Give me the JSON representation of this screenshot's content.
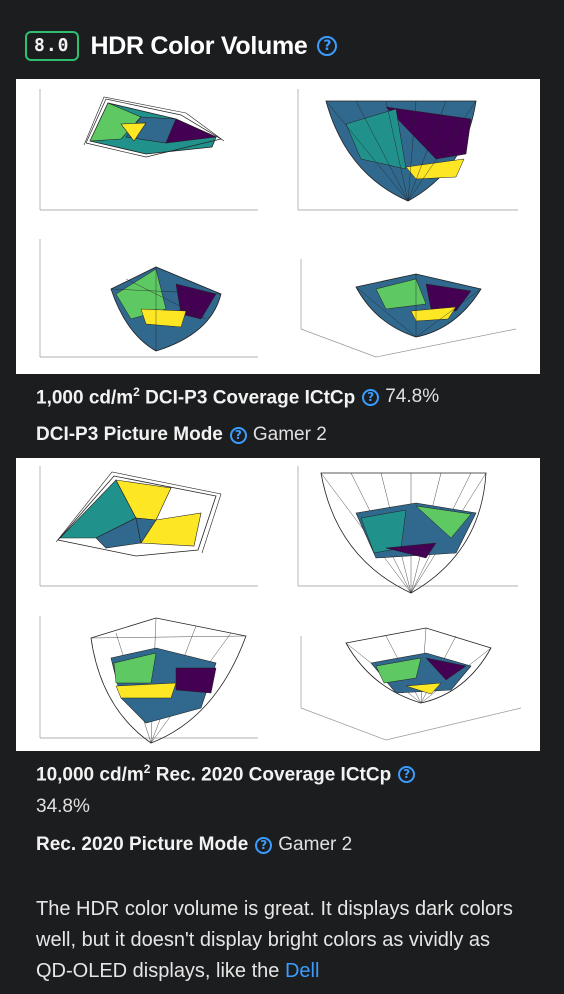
{
  "header": {
    "score": "8.0",
    "title": "HDR Color Volume",
    "help_icon": "question-circle-icon"
  },
  "measurements": [
    {
      "label_prefix": "1,000 cd/m",
      "label_sup": "2",
      "label_suffix": " DCI-P3 Coverage ICtCp",
      "value": "74.8%"
    },
    {
      "label": "DCI-P3 Picture Mode",
      "value": "Gamer 2"
    },
    {
      "label_prefix": "10,000 cd/m",
      "label_sup": "2",
      "label_suffix": " Rec. 2020 Coverage ICtCp",
      "value": "34.8%"
    },
    {
      "label": "Rec. 2020 Picture Mode",
      "value": "Gamer 2"
    }
  ],
  "paragraph": {
    "text": "The HDR color volume is great. It displays dark colors well, but it doesn't display bright colors as vividly as QD-OLED displays, like the ",
    "link": "Dell"
  },
  "colors": {
    "accent_green": "#2fbf71",
    "link_blue": "#3b9cff",
    "viridis_dark": "#440154",
    "viridis_blue": "#31688e",
    "viridis_teal": "#21918c",
    "viridis_green": "#5ec962",
    "viridis_yellow": "#fde725"
  }
}
